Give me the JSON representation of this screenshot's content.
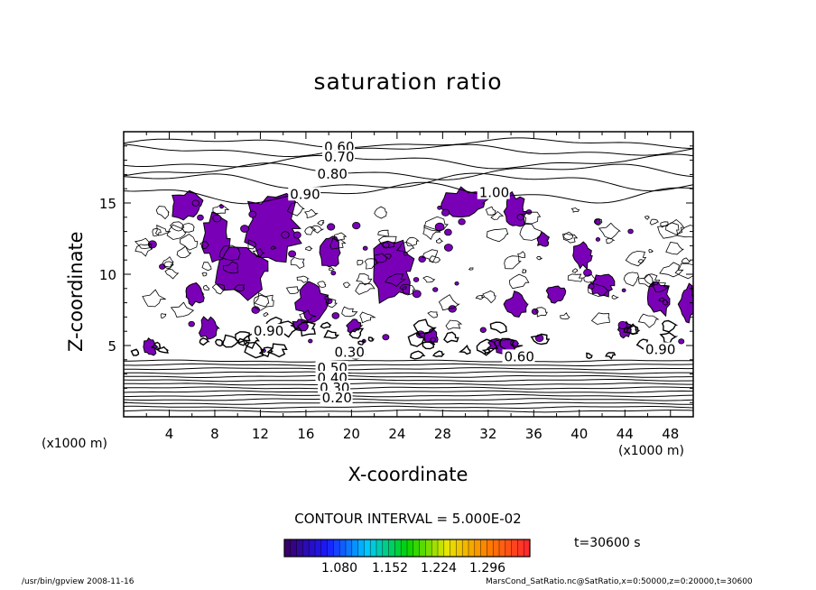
{
  "chart_data": {
    "type": "heatmap",
    "title": "saturation ratio",
    "xlabel": "X-coordinate",
    "ylabel": "Z-coordinate",
    "x_unit": "(x1000 m)",
    "y_unit": "(x1000 m)",
    "xlim": [
      0,
      50
    ],
    "ylim": [
      0,
      20
    ],
    "x_ticks": [
      4,
      8,
      12,
      16,
      20,
      24,
      28,
      32,
      36,
      40,
      44,
      48
    ],
    "y_ticks": [
      5,
      10,
      15
    ],
    "contour_interval_label": "CONTOUR INTERVAL = 5.000E-02",
    "time_label": "t=30600 s",
    "contour_labels": [
      {
        "text": "0.60",
        "x": 17.6,
        "z": 18.6
      },
      {
        "text": "0.70",
        "x": 17.6,
        "z": 17.9
      },
      {
        "text": "0.80",
        "x": 17.0,
        "z": 16.7
      },
      {
        "text": "0.90",
        "x": 14.6,
        "z": 15.3
      },
      {
        "text": "1.00",
        "x": 31.2,
        "z": 15.4
      },
      {
        "text": "0.90",
        "x": 45.8,
        "z": 4.4
      },
      {
        "text": "0.60",
        "x": 33.4,
        "z": 3.9
      },
      {
        "text": "0.90",
        "x": 11.4,
        "z": 5.7
      },
      {
        "text": "0.30",
        "x": 18.5,
        "z": 4.2
      },
      {
        "text": "0.50",
        "x": 17.0,
        "z": 3.1
      },
      {
        "text": "0.40",
        "x": 17.0,
        "z": 2.4
      },
      {
        "text": "0.30",
        "x": 17.2,
        "z": 1.7
      },
      {
        "text": "0.20",
        "x": 17.4,
        "z": 1.0
      }
    ],
    "colorbar": {
      "tick_labels": [
        "1.080",
        "1.152",
        "1.224",
        "1.296"
      ],
      "colors": [
        "#3a006e",
        "#1a1aff",
        "#00c8ff",
        "#00d200",
        "#e6e600",
        "#ff8000",
        "#ff2a2a"
      ]
    },
    "fill_color": "#7a00b8"
  },
  "footer": {
    "left": "/usr/bin/gpview   2008-11-16",
    "right": "MarsCond_SatRatio.nc@SatRatio,x=0:50000,z=0:20000,t=30600"
  }
}
